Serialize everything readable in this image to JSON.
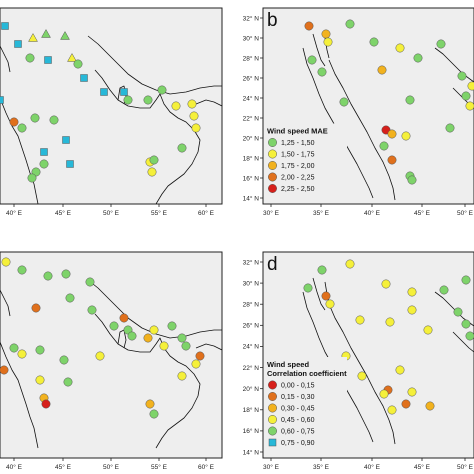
{
  "panels": [
    {
      "id": "a",
      "letter": "",
      "x_ticks": [
        "40° E",
        "45° E",
        "50° E",
        "55° E",
        "60° E"
      ],
      "y_ticks": [],
      "legend": null
    },
    {
      "id": "b",
      "letter": "b",
      "x_ticks": [
        "30° E",
        "35° E",
        "40° E",
        "45° E",
        "50° E"
      ],
      "y_ticks": [
        "32° N",
        "30° N",
        "28° N",
        "26° N",
        "24° N",
        "22° N",
        "20° N",
        "18° N",
        "16° N",
        "14° N"
      ],
      "legend": {
        "title_lines": [
          "Wind speed MAE"
        ],
        "items": [
          {
            "label": "1,25 - 1,50",
            "color": "#7ed36a"
          },
          {
            "label": "1,50 - 1,75",
            "color": "#f5f03a"
          },
          {
            "label": "1,75 - 2,00",
            "color": "#f2b21e"
          },
          {
            "label": "2,00 - 2,25",
            "color": "#e0701c"
          },
          {
            "label": "2,25 - 2,50",
            "color": "#d6201b"
          }
        ]
      }
    },
    {
      "id": "c",
      "letter": "",
      "x_ticks": [
        "40° E",
        "45° E",
        "50° E",
        "55° E",
        "60° E"
      ],
      "y_ticks": [],
      "legend": null
    },
    {
      "id": "d",
      "letter": "d",
      "x_ticks": [
        "30° E",
        "35° E",
        "40° E",
        "45° E",
        "50° E"
      ],
      "y_ticks": [
        "32° N",
        "30° N",
        "28° N",
        "26° N",
        "24° N",
        "22° N",
        "20° N",
        "18° N",
        "16° N",
        "14° N"
      ],
      "legend": {
        "title_lines": [
          "Wind speed",
          "Correlation coefficient"
        ],
        "items": [
          {
            "label": "0,00 - 0,15",
            "color": "#d6201b"
          },
          {
            "label": "0,15 - 0,30",
            "color": "#e0701c"
          },
          {
            "label": "0,30 - 0,45",
            "color": "#f2b21e"
          },
          {
            "label": "0,45 - 0,60",
            "color": "#f5f03a"
          },
          {
            "label": "0,60 - 0,75",
            "color": "#7ed36a"
          },
          {
            "label": "0,75 - 0,90",
            "color": "#27b8d8"
          }
        ]
      }
    }
  ]
}
